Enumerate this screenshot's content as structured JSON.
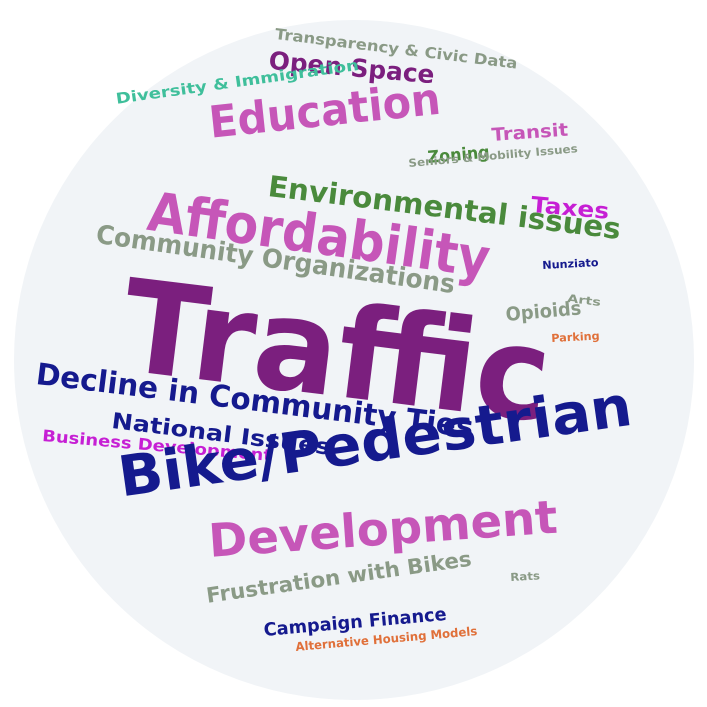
{
  "colors": {
    "background": "#ffffff",
    "circle": "#f1f4f7",
    "purple": "#7b1f7e",
    "orchid": "#c656b8",
    "magenta": "#c61fd4",
    "navy": "#151a8e",
    "green": "#4a8a3c",
    "teal": "#3fbf9b",
    "sage": "#8a9a86",
    "orange": "#e0703a"
  },
  "words": [
    {
      "text": "Transparency & Civic Data",
      "color": "#8a9a86"
    },
    {
      "text": "Open Space",
      "color": "#7b1f7e"
    },
    {
      "text": "Diversity & Immigration",
      "color": "#3fbf9b"
    },
    {
      "text": "Education",
      "color": "#c656b8"
    },
    {
      "text": "Transit",
      "color": "#c656b8"
    },
    {
      "text": "Zoning",
      "color": "#4a8a3c"
    },
    {
      "text": "Seniors & Mobility Issues",
      "color": "#8a9a86"
    },
    {
      "text": "Environmental issues",
      "color": "#4a8a3c"
    },
    {
      "text": "Taxes",
      "color": "#c61fd4"
    },
    {
      "text": "Affordability",
      "color": "#c656b8"
    },
    {
      "text": "Community Organizations",
      "color": "#8a9a86"
    },
    {
      "text": "Nunziato",
      "color": "#151a8e"
    },
    {
      "text": "Arts",
      "color": "#8a9a86"
    },
    {
      "text": "Opioids",
      "color": "#8a9a86"
    },
    {
      "text": "Traffic",
      "color": "#7b1f7e"
    },
    {
      "text": "Parking",
      "color": "#e0703a"
    },
    {
      "text": "Decline in Community Ties",
      "color": "#151a8e"
    },
    {
      "text": "National Issues",
      "color": "#151a8e"
    },
    {
      "text": "Business Development",
      "color": "#c61fd4"
    },
    {
      "text": "Bike/Pedestrian",
      "color": "#151a8e"
    },
    {
      "text": "Development",
      "color": "#c656b8"
    },
    {
      "text": "Rats",
      "color": "#8a9a86"
    },
    {
      "text": "Frustration with Bikes",
      "color": "#8a9a86"
    },
    {
      "text": "Campaign Finance",
      "color": "#151a8e"
    },
    {
      "text": "Alternative Housing Models",
      "color": "#e0703a"
    }
  ]
}
